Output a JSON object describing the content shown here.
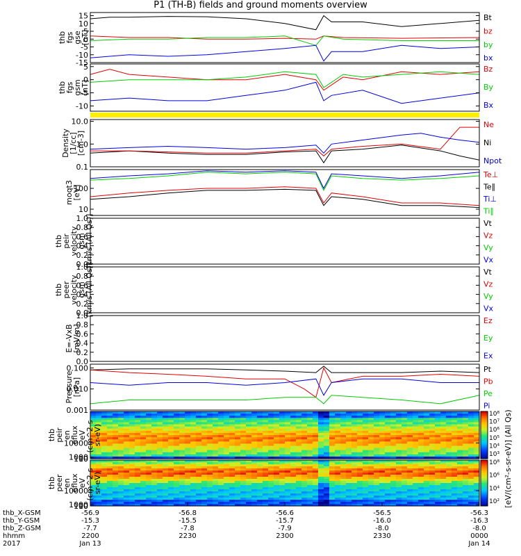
{
  "title": "P1 (TH-B) fields and ground moments overview",
  "colors": {
    "black": "#000000",
    "red": "#e00000",
    "green": "#00cc00",
    "blue": "#0000dd",
    "yellow": "#ffee00"
  },
  "chart_data": [
    {
      "id": "fgs_gse",
      "type": "line",
      "ylabel": [
        "thb",
        "fgs",
        "gse",
        "[nT]"
      ],
      "ylim": [
        -15,
        17
      ],
      "ticks": [
        15,
        10,
        5,
        0,
        -5,
        -10,
        -15
      ],
      "legend": [
        "Bt",
        "bz",
        "by",
        "bx"
      ],
      "series": [
        {
          "name": "Bt",
          "color": "#000000",
          "x": [
            0,
            0.05,
            0.1,
            0.2,
            0.3,
            0.4,
            0.5,
            0.58,
            0.6,
            0.62,
            0.7,
            0.8,
            0.9,
            1
          ],
          "y": [
            13,
            14,
            14,
            14.5,
            14.3,
            13,
            10,
            6,
            15,
            11,
            11,
            8,
            10,
            12
          ]
        },
        {
          "name": "bz",
          "color": "#e00000",
          "x": [
            0,
            0.1,
            0.2,
            0.3,
            0.4,
            0.5,
            0.58,
            0.6,
            0.65,
            0.8,
            1
          ],
          "y": [
            2,
            1,
            1,
            0,
            0,
            0.5,
            0,
            2,
            1,
            0.5,
            1
          ]
        },
        {
          "name": "by",
          "color": "#00cc00",
          "x": [
            0,
            0.1,
            0.2,
            0.3,
            0.4,
            0.5,
            0.58,
            0.6,
            0.65,
            0.8,
            1
          ],
          "y": [
            -1,
            0,
            0,
            1,
            1,
            2,
            -4,
            2,
            0,
            -1,
            -1
          ]
        },
        {
          "name": "bx",
          "color": "#0000dd",
          "x": [
            0,
            0.1,
            0.2,
            0.3,
            0.4,
            0.5,
            0.58,
            0.6,
            0.62,
            0.7,
            0.8,
            0.9,
            1
          ],
          "y": [
            -12,
            -10,
            -11,
            -10,
            -8,
            -6,
            -4,
            -14,
            -8,
            -8,
            -4,
            -6,
            -5
          ]
        }
      ]
    },
    {
      "id": "fgs_gsm",
      "type": "line",
      "ylabel": [
        "thb",
        "fgs",
        "gsm",
        "[nT]"
      ],
      "ylim": [
        -12,
        6
      ],
      "ticks": [
        5,
        0,
        -5,
        -10
      ],
      "legend": [
        "Bz",
        "By",
        "Bx"
      ],
      "series": [
        {
          "name": "Bz",
          "color": "#e00000",
          "x": [
            0,
            0.05,
            0.1,
            0.2,
            0.3,
            0.4,
            0.5,
            0.58,
            0.6,
            0.65,
            0.7,
            0.8,
            0.9,
            1
          ],
          "y": [
            2,
            4,
            2,
            1,
            0,
            0,
            2,
            0,
            -4,
            1,
            0,
            3,
            2,
            3
          ]
        },
        {
          "name": "By",
          "color": "#00cc00",
          "x": [
            0,
            0.1,
            0.2,
            0.3,
            0.4,
            0.5,
            0.58,
            0.6,
            0.65,
            0.7,
            0.8,
            0.9,
            1
          ],
          "y": [
            -1,
            0,
            0,
            0,
            1,
            3,
            2,
            -3,
            2,
            1,
            2,
            3,
            2
          ]
        },
        {
          "name": "Bx",
          "color": "#0000dd",
          "x": [
            0,
            0.1,
            0.2,
            0.3,
            0.4,
            0.45,
            0.5,
            0.58,
            0.6,
            0.62,
            0.7,
            0.8,
            0.9,
            1
          ],
          "y": [
            -8,
            -7,
            -8,
            -8,
            -6,
            -5,
            -4,
            -1,
            -8,
            -6,
            -4,
            -9,
            -7,
            -5
          ]
        }
      ]
    },
    {
      "id": "density",
      "type": "line",
      "log": true,
      "ylabel": [
        "Density",
        "[1/cc]",
        "[cm-3]"
      ],
      "ylim": [
        0.1,
        12
      ],
      "ticks": [
        10.0,
        1.0,
        0.1
      ],
      "ticklabels": [
        "10.0",
        "1.0",
        "0.1"
      ],
      "legend": [
        "Ne",
        "Ni",
        "Npot"
      ],
      "series": [
        {
          "name": "Ni",
          "color": "#000000",
          "x": [
            0,
            0.1,
            0.2,
            0.3,
            0.4,
            0.5,
            0.58,
            0.6,
            0.62,
            0.7,
            0.8,
            0.9,
            0.95,
            1
          ],
          "y": [
            0.4,
            0.5,
            0.4,
            0.35,
            0.35,
            0.45,
            0.5,
            0.15,
            0.5,
            0.6,
            0.9,
            0.5,
            0.3,
            0.2
          ]
        },
        {
          "name": "Ne",
          "color": "#e00000",
          "x": [
            0,
            0.1,
            0.2,
            0.3,
            0.4,
            0.5,
            0.58,
            0.6,
            0.62,
            0.7,
            0.8,
            0.9,
            0.95,
            1
          ],
          "y": [
            0.5,
            0.5,
            0.45,
            0.4,
            0.4,
            0.5,
            0.6,
            0.3,
            0.6,
            0.8,
            1.0,
            0.6,
            5.5,
            5.5
          ]
        },
        {
          "name": "Npot",
          "color": "#0000dd",
          "x": [
            0,
            0.1,
            0.2,
            0.3,
            0.4,
            0.5,
            0.58,
            0.6,
            0.62,
            0.7,
            0.8,
            0.85,
            0.9,
            0.95,
            1
          ],
          "y": [
            0.6,
            0.7,
            0.8,
            0.7,
            0.6,
            0.7,
            0.9,
            0.4,
            1.0,
            1.5,
            2.5,
            3.0,
            2.0,
            1.5,
            1.2
          ]
        }
      ]
    },
    {
      "id": "moments_temp",
      "type": "line",
      "log": true,
      "ylabel": [
        "moqt3",
        "[eV]"
      ],
      "ylim": [
        5,
        800
      ],
      "ticks": [
        100,
        10
      ],
      "ticklabels": [
        "100",
        "10"
      ],
      "legend": [
        "Te⊥",
        "Te∥",
        "Ti⊥",
        "Ti∥"
      ],
      "series": [
        {
          "name": "Ti⊥",
          "color": "#0000dd",
          "x": [
            0,
            0.1,
            0.2,
            0.3,
            0.4,
            0.5,
            0.58,
            0.6,
            0.62,
            0.7,
            0.8,
            0.9,
            1
          ],
          "y": [
            300,
            400,
            500,
            700,
            600,
            700,
            600,
            100,
            500,
            400,
            300,
            400,
            600
          ]
        },
        {
          "name": "Ti∥",
          "color": "#00cc00",
          "x": [
            0,
            0.1,
            0.2,
            0.3,
            0.4,
            0.5,
            0.58,
            0.6,
            0.62,
            0.7,
            0.8,
            0.9,
            1
          ],
          "y": [
            250,
            300,
            400,
            600,
            500,
            600,
            500,
            80,
            400,
            300,
            250,
            300,
            400
          ]
        },
        {
          "name": "Te⊥",
          "color": "#e00000",
          "x": [
            0,
            0.1,
            0.2,
            0.3,
            0.4,
            0.5,
            0.58,
            0.6,
            0.62,
            0.7,
            0.8,
            0.9,
            1
          ],
          "y": [
            40,
            60,
            80,
            100,
            100,
            120,
            100,
            20,
            60,
            40,
            20,
            20,
            15
          ]
        },
        {
          "name": "Te∥",
          "color": "#000000",
          "x": [
            0,
            0.1,
            0.2,
            0.3,
            0.4,
            0.5,
            0.58,
            0.6,
            0.62,
            0.7,
            0.8,
            0.9,
            1
          ],
          "y": [
            30,
            40,
            60,
            80,
            80,
            90,
            80,
            15,
            40,
            30,
            15,
            15,
            12
          ]
        }
      ]
    },
    {
      "id": "peir_velocity",
      "type": "line",
      "empty": true,
      "ylabel": [
        "thb",
        "peir",
        "velocity",
        "gsm",
        "[km/s (All Qs)]"
      ],
      "ylim": [
        0,
        1
      ],
      "ticks": [
        1.0,
        0.8,
        0.6,
        0.4,
        0.2,
        0.0
      ],
      "ticklabels": [
        "1.0",
        "0.8",
        "0.6",
        "0.4",
        "0.2",
        "0.0"
      ],
      "legend": [
        "Vt",
        "Vz",
        "Vy",
        "Vx"
      ]
    },
    {
      "id": "peer_velocity",
      "type": "line",
      "empty": true,
      "ylabel": [
        "thb",
        "peer",
        "velocity",
        "gsm",
        "[km/s (All Qs)]"
      ],
      "ylim": [
        0,
        1
      ],
      "ticks": [
        1.0,
        0.8,
        0.6,
        0.4,
        0.2,
        0.0
      ],
      "ticklabels": [
        "1.0",
        "0.8",
        "0.6",
        "0.4",
        "0.2",
        "0.0"
      ],
      "legend": [
        "Vt",
        "Vz",
        "Vy",
        "Vx"
      ]
    },
    {
      "id": "efield",
      "type": "line",
      "empty": true,
      "ylabel": [
        "E=-VxB",
        "[mV/m]"
      ],
      "ylim": [
        0,
        1
      ],
      "ticks": [
        1.0,
        0.8,
        0.6,
        0.4,
        0.2,
        0.0
      ],
      "ticklabels": [
        "1.0",
        "0.8",
        "0.6",
        "0.4",
        "0.2",
        "0.0"
      ],
      "legend": [
        "Ez",
        "Ey",
        "Ex"
      ]
    },
    {
      "id": "pressure",
      "type": "line",
      "log": true,
      "ylabel": [
        "Pressure",
        "[nPa]"
      ],
      "ylim": [
        0.001,
        0.15
      ],
      "ticks": [
        0.1,
        0.01,
        0.001
      ],
      "ticklabels": [
        "0.100",
        "0.010",
        "0.001"
      ],
      "legend": [
        "Pt",
        "Pb",
        "Pe",
        "Pi"
      ],
      "series": [
        {
          "name": "Pt",
          "color": "#000000",
          "x": [
            0,
            0.1,
            0.2,
            0.3,
            0.4,
            0.5,
            0.58,
            0.6,
            0.62,
            0.7,
            0.8,
            0.9,
            1
          ],
          "y": [
            0.08,
            0.09,
            0.09,
            0.09,
            0.08,
            0.07,
            0.06,
            0.12,
            0.06,
            0.06,
            0.06,
            0.07,
            0.06
          ]
        },
        {
          "name": "Pb",
          "color": "#e00000",
          "x": [
            0,
            0.1,
            0.2,
            0.3,
            0.4,
            0.5,
            0.55,
            0.58,
            0.6,
            0.62,
            0.7,
            0.8,
            0.9,
            1
          ],
          "y": [
            0.08,
            0.06,
            0.05,
            0.04,
            0.03,
            0.03,
            0.01,
            0.004,
            0.1,
            0.02,
            0.04,
            0.04,
            0.05,
            0.04
          ]
        },
        {
          "name": "Pe",
          "color": "#00cc00",
          "x": [
            0,
            0.1,
            0.2,
            0.3,
            0.4,
            0.5,
            0.58,
            0.6,
            0.62,
            0.7,
            0.8,
            0.9,
            1
          ],
          "y": [
            0.002,
            0.003,
            0.003,
            0.003,
            0.003,
            0.004,
            0.004,
            0.002,
            0.005,
            0.004,
            0.003,
            0.002,
            0.005
          ]
        },
        {
          "name": "Pi",
          "color": "#0000dd",
          "x": [
            0,
            0.1,
            0.2,
            0.3,
            0.4,
            0.5,
            0.58,
            0.6,
            0.62,
            0.7,
            0.8,
            0.9,
            1
          ],
          "y": [
            0.02,
            0.015,
            0.02,
            0.02,
            0.015,
            0.02,
            0.03,
            0.005,
            0.02,
            0.03,
            0.03,
            0.02,
            0.02
          ]
        }
      ]
    },
    {
      "id": "peir_eflux",
      "type": "heatmap",
      "ylabel": [
        "thb",
        "peir",
        "en",
        "eflux",
        "eV",
        "(cm^2-s-",
        "sr-eV)"
      ],
      "ylim": [
        5,
        30000
      ],
      "ticks": [
        10000,
        1000,
        100,
        10
      ],
      "ticklabels": [
        "10000",
        "1000",
        "100",
        "10"
      ],
      "colorbar": {
        "range": [
          3,
          8
        ],
        "ticklabels": [
          "10⁸",
          "10⁷",
          "10⁶",
          "10⁵",
          "10⁴",
          "10³"
        ]
      }
    },
    {
      "id": "peer_eflux",
      "type": "heatmap",
      "ylabel": [
        "thb",
        "peer",
        "en",
        "eflux",
        "eV",
        "(cm^2-s-",
        "sr-eV)"
      ],
      "ylim": [
        5,
        30000
      ],
      "ticks": [
        10000,
        1000,
        100,
        10
      ],
      "ticklabels": [
        "10000",
        "1000",
        "100",
        "10"
      ],
      "colorbar": {
        "range": [
          2,
          8
        ],
        "ticklabels": [
          "10⁸",
          "10⁶",
          "10⁴",
          "10²"
        ]
      }
    }
  ],
  "colorbar_title": "[eV/(cm²-s-sr-eV)] (All Qs)",
  "time_axis": {
    "row_labels": [
      "thb_X-GSM",
      "thb_Y-GSM",
      "thb_Z-GSM",
      "hhmm",
      "2017"
    ],
    "columns": [
      [
        "-56.9",
        "-15.3",
        "-7.7",
        "2200",
        "Jan 13"
      ],
      [
        "-56.8",
        "-15.5",
        "-7.8",
        "2230",
        ""
      ],
      [
        "-56.6",
        "-15.7",
        "-7.9",
        "2300",
        ""
      ],
      [
        "-56.5",
        "-16.0",
        "-8.0",
        "2330",
        ""
      ],
      [
        "-56.3",
        "-16.3",
        "-8.0",
        "0000",
        "Jan 14"
      ]
    ]
  }
}
